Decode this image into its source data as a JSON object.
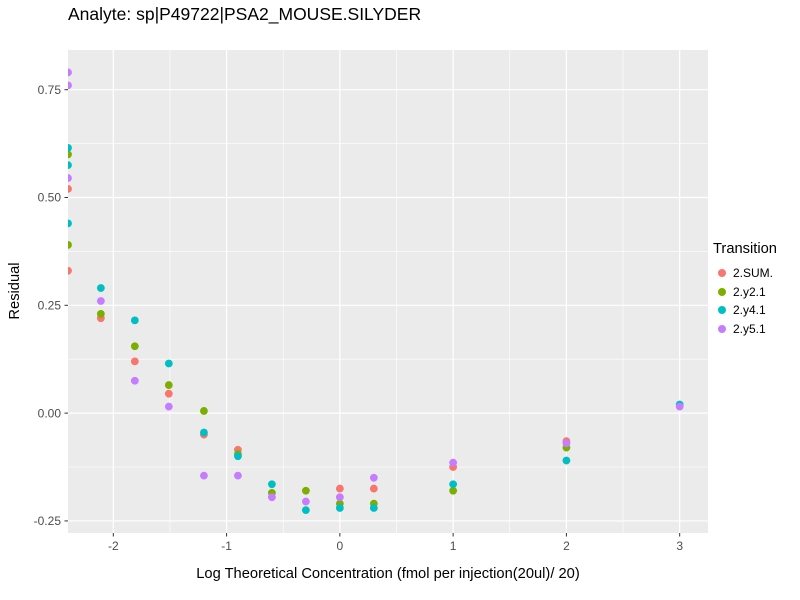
{
  "page_title": "Analyte: sp|P49722|PSA2_MOUSE.SILYDER",
  "chart_data": {
    "type": "scatter",
    "title": "Analyte: sp|P49722|PSA2_MOUSE.SILYDER",
    "xlabel": "Log Theoretical Concentration (fmol per injection(20ul)/ 20)",
    "ylabel": "Residual",
    "xlim": [
      -2.4,
      3.25
    ],
    "ylim": [
      -0.278,
      0.842
    ],
    "x_ticks": [
      {
        "v": -2,
        "label": "-2"
      },
      {
        "v": -1,
        "label": "-1"
      },
      {
        "v": 0,
        "label": "0"
      },
      {
        "v": 1,
        "label": "1"
      },
      {
        "v": 2,
        "label": "2"
      },
      {
        "v": 3,
        "label": "3"
      }
    ],
    "y_ticks": [
      {
        "v": 0.75,
        "label": "0.75"
      },
      {
        "v": 0.5,
        "label": "0.50"
      },
      {
        "v": 0.25,
        "label": "0.25"
      },
      {
        "v": 0.0,
        "label": "0.00"
      },
      {
        "v": -0.25,
        "label": "-0.25"
      }
    ],
    "x_minor_ticks": [
      -1.5,
      -0.5,
      0.5,
      1.5,
      2.5
    ],
    "y_minor_ticks": [
      0.625,
      0.375,
      0.125,
      -0.125
    ],
    "grid": "major+minor",
    "legend_title": "Transition",
    "legend_position": "right",
    "colors": {
      "panel_bg": "#EBEBEB",
      "grid": "#FFFFFF",
      "tick_mark": "#333333",
      "tick_text": "#4D4D4D",
      "text": "#000000"
    },
    "point_radius": 3.9,
    "series": [
      {
        "name": "2.SUM.",
        "color": "#F8766D",
        "points": [
          [
            -2.4,
            0.52
          ],
          [
            -2.4,
            0.33
          ],
          [
            -2.11,
            0.22
          ],
          [
            -1.81,
            0.12
          ],
          [
            -1.51,
            0.045
          ],
          [
            -1.2,
            -0.05
          ],
          [
            -0.9,
            -0.085
          ],
          [
            0,
            -0.175
          ],
          [
            0.3,
            -0.175
          ],
          [
            1,
            -0.125
          ],
          [
            2,
            -0.065
          ]
        ]
      },
      {
        "name": "2.y2.1",
        "color": "#7CAE00",
        "points": [
          [
            -2.4,
            0.6
          ],
          [
            -2.4,
            0.39
          ],
          [
            -2.11,
            0.23
          ],
          [
            -1.81,
            0.155
          ],
          [
            -1.51,
            0.065
          ],
          [
            -1.2,
            0.005
          ],
          [
            -0.9,
            -0.095
          ],
          [
            -0.6,
            -0.185
          ],
          [
            -0.3,
            -0.18
          ],
          [
            0,
            -0.21
          ],
          [
            0.3,
            -0.21
          ],
          [
            1,
            -0.18
          ],
          [
            2,
            -0.08
          ]
        ]
      },
      {
        "name": "2.y4.1",
        "color": "#00BFC4",
        "points": [
          [
            -2.4,
            0.615
          ],
          [
            -2.4,
            0.575
          ],
          [
            -2.4,
            0.44
          ],
          [
            -2.11,
            0.29
          ],
          [
            -1.81,
            0.215
          ],
          [
            -1.51,
            0.115
          ],
          [
            -1.2,
            -0.045
          ],
          [
            -0.9,
            -0.1
          ],
          [
            -0.6,
            -0.165
          ],
          [
            -0.3,
            -0.225
          ],
          [
            0,
            -0.22
          ],
          [
            0.3,
            -0.22
          ],
          [
            1,
            -0.165
          ],
          [
            2,
            -0.11
          ],
          [
            3,
            0.02
          ]
        ]
      },
      {
        "name": "2.y5.1",
        "color": "#C77CFF",
        "points": [
          [
            -2.4,
            0.79
          ],
          [
            -2.4,
            0.76
          ],
          [
            -2.4,
            0.545
          ],
          [
            -2.11,
            0.26
          ],
          [
            -1.81,
            0.075
          ],
          [
            -1.51,
            0.015
          ],
          [
            -1.2,
            -0.145
          ],
          [
            -0.9,
            -0.145
          ],
          [
            -0.6,
            -0.195
          ],
          [
            -0.3,
            -0.205
          ],
          [
            0,
            -0.195
          ],
          [
            0.3,
            -0.15
          ],
          [
            1,
            -0.115
          ],
          [
            2,
            -0.07
          ],
          [
            3,
            0.015
          ]
        ]
      }
    ]
  }
}
